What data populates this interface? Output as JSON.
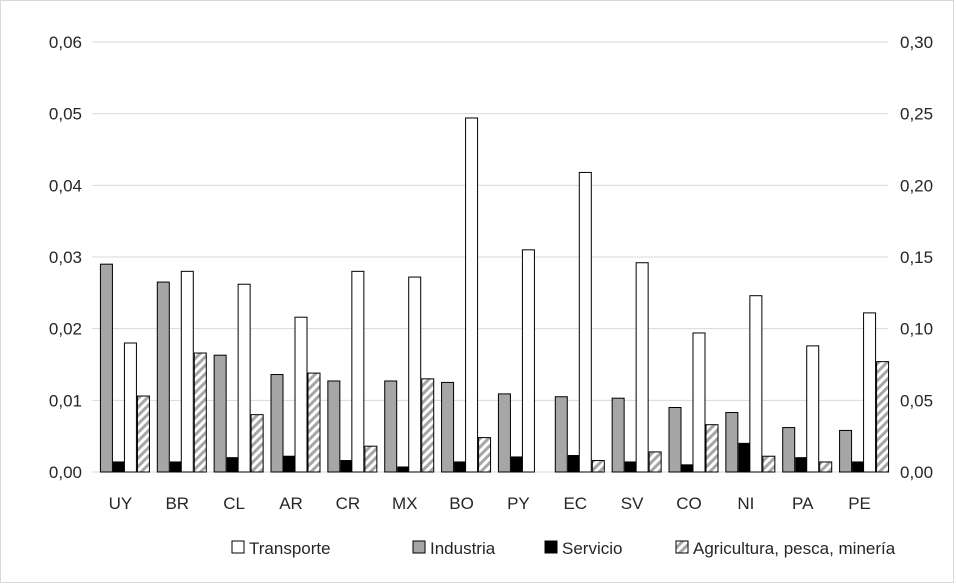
{
  "chart_data": {
    "type": "bar",
    "categories": [
      "UY",
      "BR",
      "CL",
      "AR",
      "CR",
      "MX",
      "BO",
      "PY",
      "EC",
      "SV",
      "CO",
      "NI",
      "PA",
      "PE"
    ],
    "series": [
      {
        "name": "Transporte",
        "axis": "right",
        "fill": "#ffffff",
        "values": [
          0.09,
          0.14,
          0.131,
          0.108,
          0.14,
          0.136,
          0.247,
          0.155,
          0.209,
          0.146,
          0.097,
          0.123,
          0.088,
          0.111
        ]
      },
      {
        "name": "Industria",
        "axis": "left",
        "fill": "#a6a6a6",
        "values": [
          0.029,
          0.0265,
          0.0163,
          0.0136,
          0.0127,
          0.0127,
          0.0125,
          0.0109,
          0.0105,
          0.0103,
          0.009,
          0.0083,
          0.0062,
          0.0058
        ]
      },
      {
        "name": "Servicio",
        "axis": "left",
        "fill": "#000000",
        "values": [
          0.0014,
          0.0014,
          0.002,
          0.0022,
          0.0016,
          0.0007,
          0.0014,
          0.0021,
          0.0023,
          0.0014,
          0.001,
          0.004,
          0.002,
          0.0014
        ]
      },
      {
        "name": "Agricultura, pesca, minería",
        "axis": "right",
        "fill": "hatched",
        "values": [
          0.053,
          0.083,
          0.04,
          0.069,
          0.018,
          0.065,
          0.024,
          0.0,
          0.008,
          0.014,
          0.033,
          0.011,
          0.007,
          0.077
        ]
      }
    ],
    "y_left": {
      "ylim": [
        0,
        0.06
      ],
      "ticks": [
        "0,00",
        "0,01",
        "0,02",
        "0,03",
        "0,04",
        "0,05",
        "0,06"
      ]
    },
    "y_right": {
      "ylim": [
        0,
        0.3
      ],
      "ticks": [
        "0,00",
        "0,05",
        "0,10",
        "0,15",
        "0,20",
        "0,25",
        "0,30"
      ]
    },
    "grid": true,
    "legend_position": "bottom",
    "title": "",
    "xlabel": "",
    "ylabel": ""
  },
  "colors": {
    "gridline": "#d9d9d9",
    "bar_outline": "#000000",
    "text": "#262626"
  }
}
